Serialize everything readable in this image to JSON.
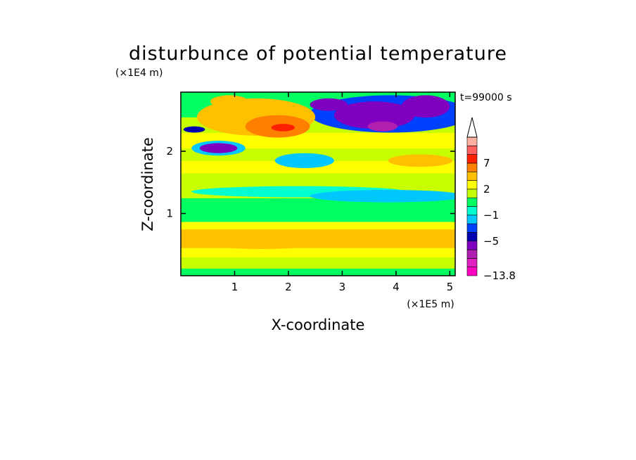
{
  "chart_data": {
    "type": "heatmap",
    "title": "disturbunce of potential temperature",
    "xlabel": "X-coordinate",
    "ylabel": "Z-coordinate",
    "x_scale_label": "(×1E5 m)",
    "y_scale_label": "(×1E4 m)",
    "time_label": "t=99000 s",
    "xlim": [
      0,
      5.1
    ],
    "ylim": [
      0,
      2.95
    ],
    "x_ticks": [
      "1",
      "2",
      "3",
      "4",
      "5"
    ],
    "y_ticks": [
      "1",
      "2"
    ],
    "colorbar": {
      "labels": [
        "7",
        "2",
        "−1",
        "−5",
        "−13.8"
      ],
      "label_values": [
        7,
        2,
        -1,
        -5,
        -13.8
      ],
      "levels": [
        -13.8,
        -9,
        -7,
        -6,
        -5,
        -3,
        -2,
        -1,
        0,
        1,
        2,
        3,
        5,
        7,
        9,
        12,
        15
      ],
      "colors": [
        "#ff00c0",
        "#e020c0",
        "#b020b0",
        "#8000c0",
        "#0000b0",
        "#0040ff",
        "#00c8ff",
        "#00ffd0",
        "#00ff60",
        "#c8ff00",
        "#ffff00",
        "#ffc000",
        "#ff8000",
        "#ff2000",
        "#ff6060",
        "#ffb0a0"
      ],
      "extend": "max"
    },
    "bands": [
      {
        "z": [
          0.0,
          0.12
        ],
        "value": 0.5
      },
      {
        "z": [
          0.12,
          0.3
        ],
        "value": 1.5
      },
      {
        "z": [
          0.3,
          0.45
        ],
        "value": 2.5
      },
      {
        "z": [
          0.45,
          0.75
        ],
        "value": 3.5
      },
      {
        "z": [
          0.75,
          0.87
        ],
        "value": 2.5
      },
      {
        "z": [
          0.87,
          1.05
        ],
        "value": 0.5
      },
      {
        "z": [
          1.05,
          1.25
        ],
        "value": 0.5
      },
      {
        "z": [
          1.25,
          1.45
        ],
        "value": 1.5
      },
      {
        "z": [
          1.45,
          1.65
        ],
        "value": 1.5
      },
      {
        "z": [
          1.65,
          1.85
        ],
        "value": 2.5
      },
      {
        "z": [
          1.85,
          2.05
        ],
        "value": 1.5
      },
      {
        "z": [
          2.05,
          2.3
        ],
        "value": 2.5
      },
      {
        "z": [
          2.3,
          2.55
        ],
        "value": 1.5
      },
      {
        "z": [
          2.55,
          2.95
        ],
        "value": 0.5
      }
    ],
    "features": [
      {
        "x": 2.2,
        "z": 1.35,
        "rx": 2.0,
        "rz": 0.09,
        "value": -0.5
      },
      {
        "x": 3.85,
        "z": 1.28,
        "rx": 1.45,
        "rz": 0.1,
        "value": -1.5
      },
      {
        "x": 0.7,
        "z": 2.05,
        "rx": 0.5,
        "rz": 0.12,
        "value": -1.5
      },
      {
        "x": 0.7,
        "z": 2.05,
        "rx": 0.35,
        "rz": 0.08,
        "value": -5.5
      },
      {
        "x": 2.3,
        "z": 1.85,
        "rx": 0.55,
        "rz": 0.12,
        "value": -1.5
      },
      {
        "x": 3.9,
        "z": 2.6,
        "rx": 1.5,
        "rz": 0.3,
        "value": -2.5
      },
      {
        "x": 3.6,
        "z": 2.58,
        "rx": 0.75,
        "rz": 0.22,
        "value": -5.5
      },
      {
        "x": 4.55,
        "z": 2.72,
        "rx": 0.45,
        "rz": 0.18,
        "value": -5.5
      },
      {
        "x": 3.75,
        "z": 2.4,
        "rx": 0.28,
        "rz": 0.08,
        "value": -6.5
      },
      {
        "x": 2.75,
        "z": 2.75,
        "rx": 0.35,
        "rz": 0.1,
        "value": -5.5
      },
      {
        "x": 1.4,
        "z": 2.55,
        "rx": 1.1,
        "rz": 0.3,
        "value": 4.0
      },
      {
        "x": 1.8,
        "z": 2.4,
        "rx": 0.6,
        "rz": 0.18,
        "value": 6.0
      },
      {
        "x": 1.9,
        "z": 2.38,
        "rx": 0.22,
        "rz": 0.06,
        "value": 8.0
      },
      {
        "x": 0.9,
        "z": 2.8,
        "rx": 0.35,
        "rz": 0.1,
        "value": 4.0
      },
      {
        "x": 4.45,
        "z": 1.85,
        "rx": 0.6,
        "rz": 0.1,
        "value": 4.0
      },
      {
        "x": 1.5,
        "z": 0.55,
        "rx": 1.2,
        "rz": 0.12,
        "value": 4.0
      },
      {
        "x": 0.25,
        "z": 2.35,
        "rx": 0.2,
        "rz": 0.05,
        "value": -3.5
      }
    ]
  }
}
